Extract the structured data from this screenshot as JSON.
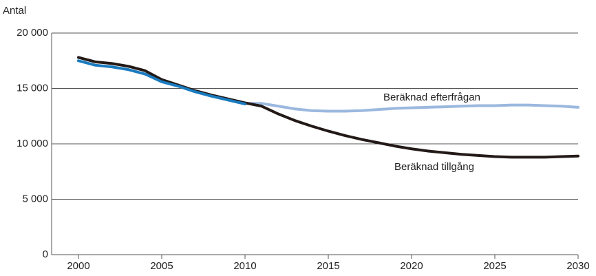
{
  "chart_data": {
    "type": "line",
    "y_label": "Antal",
    "x": [
      2000,
      2001,
      2002,
      2003,
      2004,
      2005,
      2006,
      2007,
      2008,
      2009,
      2010,
      2011,
      2012,
      2013,
      2014,
      2015,
      2016,
      2017,
      2018,
      2019,
      2020,
      2021,
      2022,
      2023,
      2024,
      2025,
      2026,
      2027,
      2028,
      2029,
      2030
    ],
    "xlim": [
      2000,
      2030
    ],
    "xticks": [
      2000,
      2005,
      2010,
      2015,
      2020,
      2025,
      2030
    ],
    "ylim": [
      0,
      20000
    ],
    "yticks": [
      0,
      {
        "value": 5000,
        "label": "5 000"
      },
      {
        "value": 10000,
        "label": "10 000"
      },
      {
        "value": 15000,
        "label": "15 000"
      },
      {
        "value": 20000,
        "label": "20 000"
      }
    ],
    "grid": true,
    "series": [
      {
        "name": "Beräknad efterfrågan",
        "color": "#9bb8de",
        "values": [
          null,
          null,
          null,
          null,
          null,
          null,
          null,
          null,
          null,
          null,
          13650,
          13650,
          13400,
          13150,
          13000,
          12950,
          12950,
          13000,
          13100,
          13200,
          13250,
          13300,
          13350,
          13400,
          13450,
          13450,
          13500,
          13500,
          13450,
          13400,
          13300
        ]
      },
      {
        "name": "Beräknad tillgång",
        "color": "#231a17",
        "values": [
          17800,
          17400,
          17250,
          17000,
          16600,
          15800,
          15300,
          14800,
          14400,
          14050,
          13700,
          13400,
          12700,
          12100,
          11600,
          11150,
          10750,
          10400,
          10100,
          9800,
          9550,
          9350,
          9200,
          9050,
          8950,
          8850,
          8800,
          8800,
          8800,
          8850,
          8900
        ]
      },
      {
        "color": "#1a7bbf",
        "values": [
          17500,
          17100,
          16950,
          16700,
          16300,
          15600,
          15200,
          14700,
          14300,
          13950,
          13600,
          null,
          null,
          null,
          null,
          null,
          null,
          null,
          null,
          null,
          null,
          null,
          null,
          null,
          null,
          null,
          null,
          null,
          null,
          null,
          null
        ]
      }
    ]
  }
}
